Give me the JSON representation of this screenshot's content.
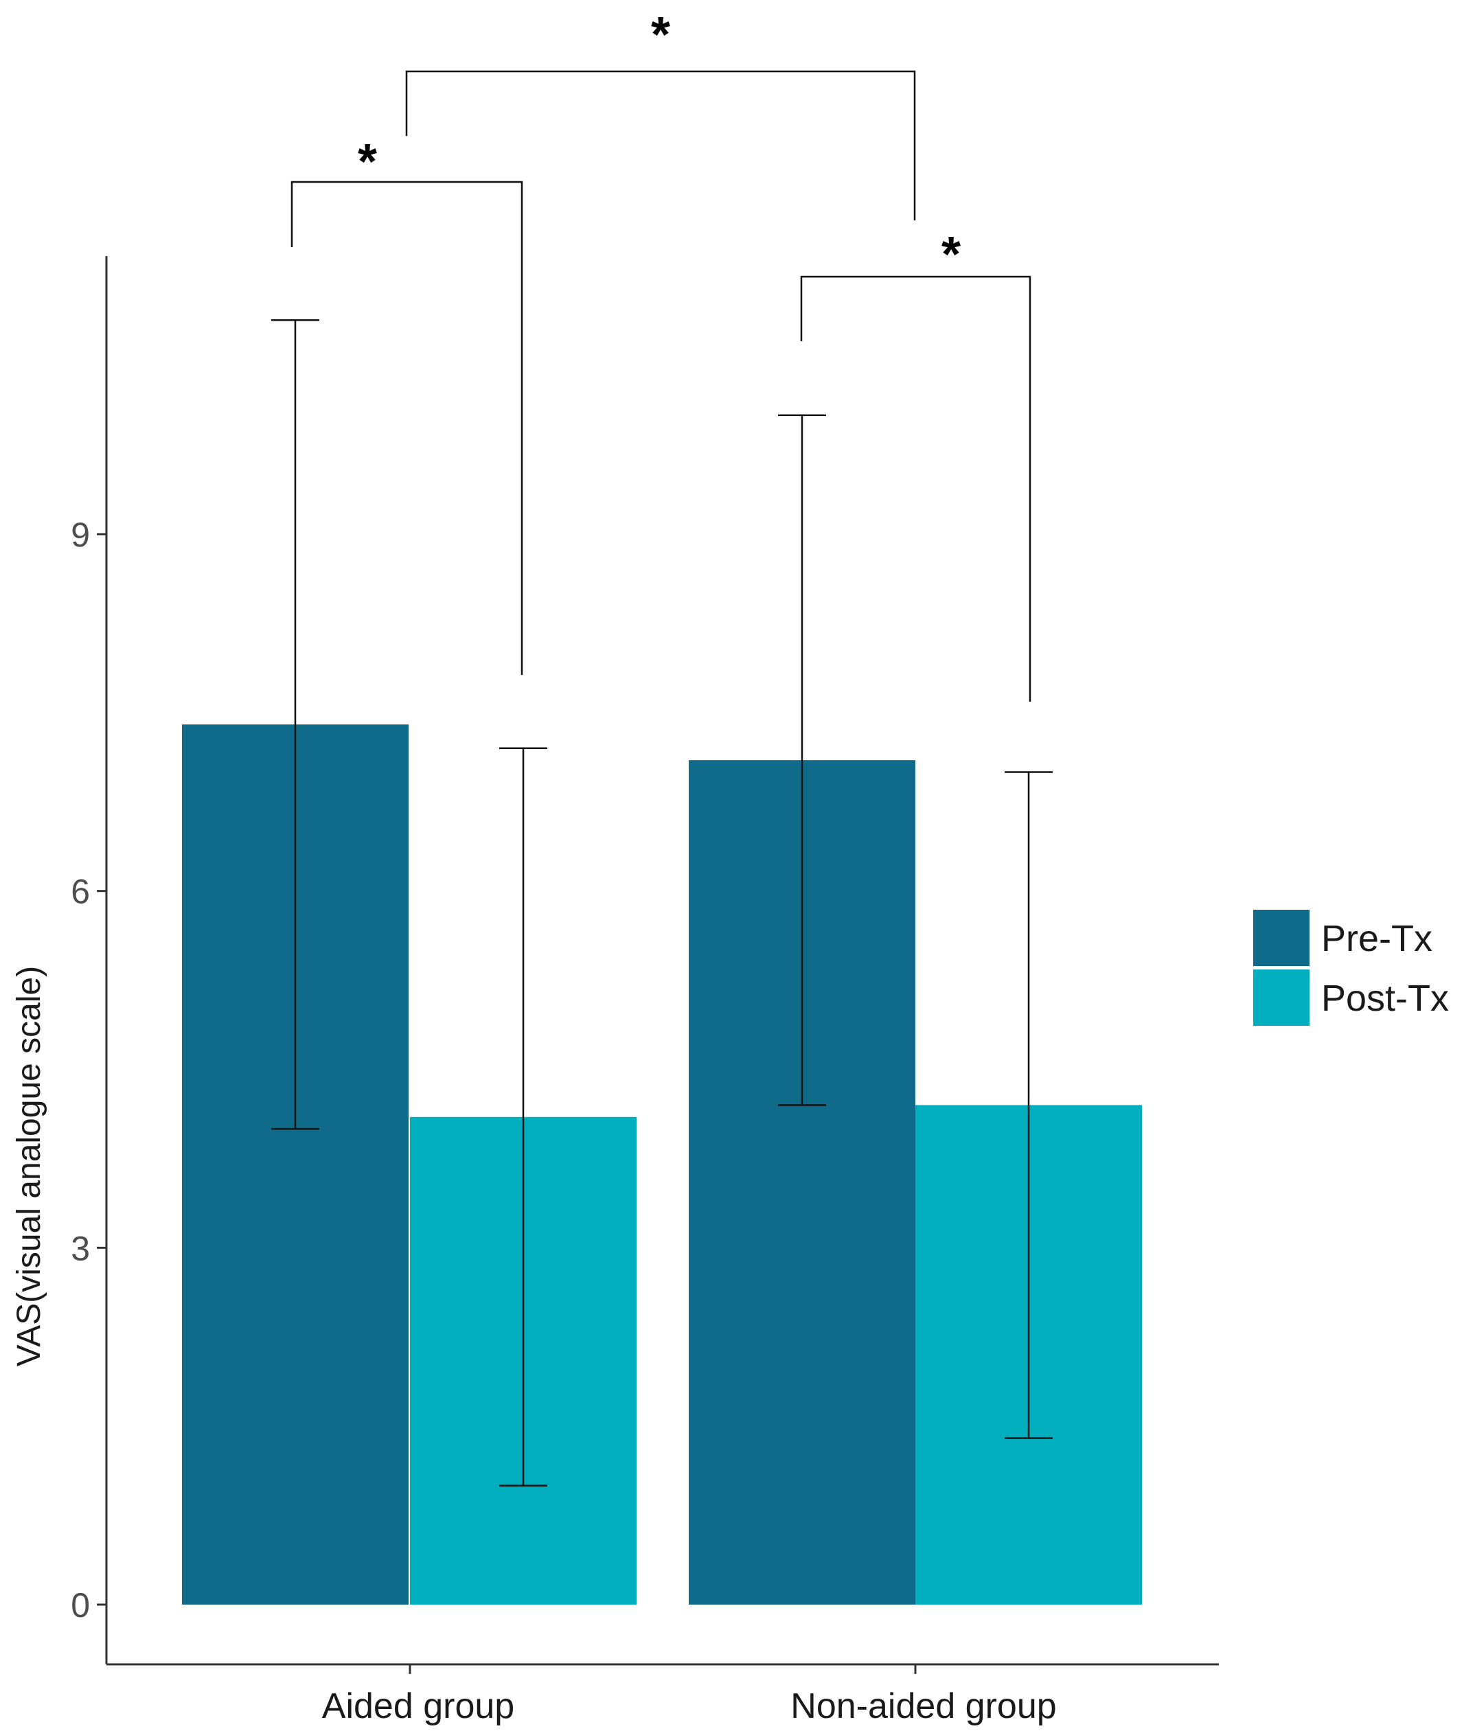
{
  "chart_data": {
    "type": "bar",
    "title": "",
    "xlabel": "",
    "ylabel": "VAS(visual analogue scale)",
    "ylim": [
      -0.5,
      11.5
    ],
    "yticks": [
      0,
      3,
      6,
      9
    ],
    "grid": false,
    "categories": [
      "Aided group",
      "Non-aided group"
    ],
    "series": [
      {
        "name": "Pre-Tx",
        "color": "#106b8a",
        "values": [
          7.4,
          7.1
        ],
        "error_low": [
          4.0,
          4.2
        ],
        "error_high": [
          10.8,
          10.0
        ]
      },
      {
        "name": "Post-Tx",
        "color": "#00aebe",
        "values": [
          4.1,
          4.2
        ],
        "error_low": [
          1.0,
          1.4
        ],
        "error_high": [
          7.2,
          7.0
        ]
      }
    ],
    "legend": {
      "position": "right",
      "labels": [
        "Pre-Tx",
        "Post-Tx"
      ]
    },
    "significance": [
      {
        "label": "*",
        "between": "Aided group: Pre-Tx vs Post-Tx"
      },
      {
        "label": "*",
        "between": "Non-aided group: Pre-Tx vs Post-Tx"
      },
      {
        "label": "*",
        "between": "Aided group vs Non-aided group"
      }
    ]
  }
}
